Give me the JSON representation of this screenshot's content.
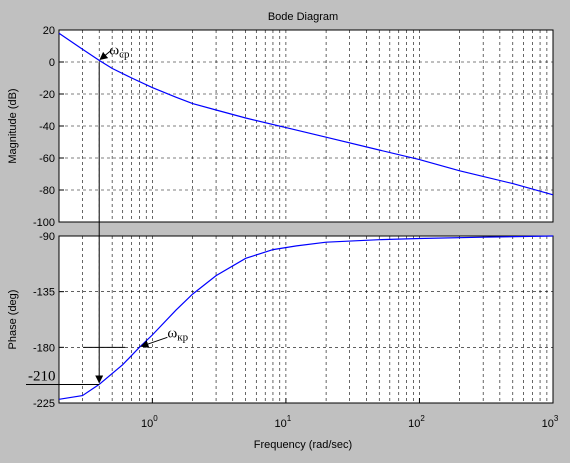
{
  "chart_data": {
    "type": "line",
    "title": "Bode Diagram",
    "xlabel": "Frequency  (rad/sec)",
    "xscale": "log",
    "xlim": [
      0.2,
      1000
    ],
    "x_tick_labels": [
      {
        "base": "10",
        "exp": "0",
        "value": 1
      },
      {
        "base": "10",
        "exp": "1",
        "value": 10
      },
      {
        "base": "10",
        "exp": "2",
        "value": 100
      },
      {
        "base": "10",
        "exp": "3",
        "value": 1000
      }
    ],
    "grid": true,
    "panels": [
      {
        "name": "magnitude",
        "ylabel": "Magnitude (dB)",
        "ylim": [
          -100,
          20
        ],
        "yticks": [
          20,
          0,
          -20,
          -40,
          -60,
          -80,
          -100
        ],
        "series": [
          {
            "color": "#0000ff",
            "points": [
              [
                0.2,
                18
              ],
              [
                0.3,
                8
              ],
              [
                0.4,
                1
              ],
              [
                0.5,
                -4
              ],
              [
                0.7,
                -10
              ],
              [
                1,
                -16
              ],
              [
                1.5,
                -22
              ],
              [
                2,
                -26
              ],
              [
                3,
                -30
              ],
              [
                5,
                -35
              ],
              [
                10,
                -41
              ],
              [
                20,
                -47
              ],
              [
                50,
                -55
              ],
              [
                100,
                -61
              ],
              [
                200,
                -68
              ],
              [
                500,
                -76
              ],
              [
                1000,
                -83
              ]
            ]
          }
        ]
      },
      {
        "name": "phase",
        "ylabel": "Phase (deg)",
        "ylim": [
          -225,
          -90
        ],
        "yticks": [
          -90,
          -135,
          -180,
          -225
        ],
        "series": [
          {
            "color": "#0000ff",
            "points": [
              [
                0.2,
                -222
              ],
              [
                0.3,
                -219
              ],
              [
                0.4,
                -210
              ],
              [
                0.6,
                -194
              ],
              [
                0.8,
                -180
              ],
              [
                1,
                -170
              ],
              [
                1.5,
                -150
              ],
              [
                2,
                -137
              ],
              [
                3,
                -122
              ],
              [
                5,
                -108
              ],
              [
                8,
                -101
              ],
              [
                12,
                -98
              ],
              [
                20,
                -95
              ],
              [
                50,
                -93
              ],
              [
                100,
                -92
              ],
              [
                300,
                -91
              ],
              [
                1000,
                -90
              ]
            ]
          }
        ]
      }
    ],
    "annotations": [
      {
        "base": "ω",
        "sub": "ср",
        "panel": "magnitude",
        "points_to": [
          0.4,
          1
        ]
      },
      {
        "base": "ω",
        "sub": "кр",
        "panel": "phase",
        "points_to": [
          0.8,
          -180
        ]
      },
      {
        "text": "-210",
        "panel": "phase",
        "value": -210
      }
    ]
  }
}
